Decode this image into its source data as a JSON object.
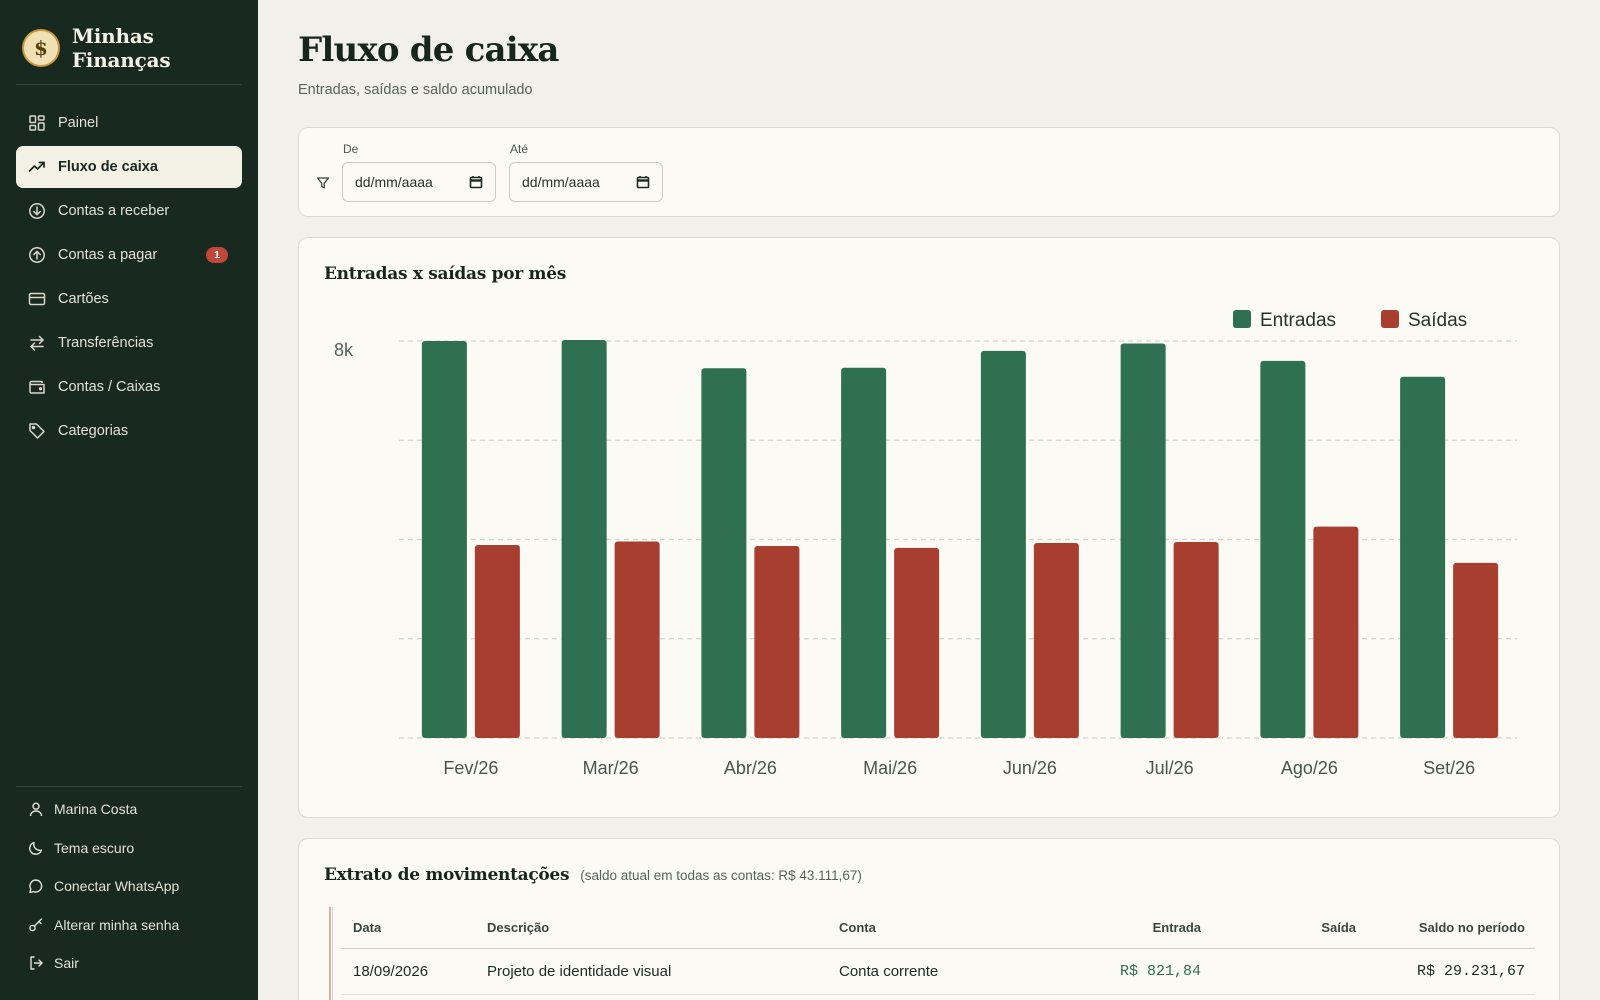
{
  "app": {
    "name": "Minhas Finanças",
    "logo_symbol": "$"
  },
  "sidebar": {
    "items": [
      {
        "label": "Painel",
        "icon": "grid-icon",
        "active": false
      },
      {
        "label": "Fluxo de caixa",
        "icon": "trending-up-icon",
        "active": true
      },
      {
        "label": "Contas a receber",
        "icon": "arrow-down-circle-icon",
        "active": false
      },
      {
        "label": "Contas a pagar",
        "icon": "arrow-up-circle-icon",
        "active": false,
        "badge": "1"
      },
      {
        "label": "Cartões",
        "icon": "credit-card-icon",
        "active": false
      },
      {
        "label": "Transferências",
        "icon": "transfer-arrows-icon",
        "active": false
      },
      {
        "label": "Contas / Caixas",
        "icon": "wallet-icon",
        "active": false
      },
      {
        "label": "Categorias",
        "icon": "tag-icon",
        "active": false
      }
    ],
    "footer": [
      {
        "label": "Marina Costa",
        "icon": "user-icon"
      },
      {
        "label": "Tema escuro",
        "icon": "moon-icon"
      },
      {
        "label": "Conectar WhatsApp",
        "icon": "chat-bubble-icon"
      },
      {
        "label": "Alterar minha senha",
        "icon": "key-icon"
      },
      {
        "label": "Sair",
        "icon": "logout-icon"
      }
    ]
  },
  "page": {
    "title": "Fluxo de caixa",
    "subtitle": "Entradas, saídas e saldo acumulado"
  },
  "filters": {
    "from_label": "De",
    "from_placeholder": "dd/mm/aaaa",
    "to_label": "Até",
    "to_placeholder": "dd/mm/aaaa"
  },
  "chart_card": {
    "title": "Entradas x saídas por mês"
  },
  "chart_data": {
    "type": "bar",
    "categories": [
      "Fev/26",
      "Mar/26",
      "Abr/26",
      "Mai/26",
      "Jun/26",
      "Jul/26",
      "Ago/26",
      "Set/26"
    ],
    "series": [
      {
        "name": "Entradas",
        "color": "#2f7050",
        "values": [
          8000,
          8020,
          7450,
          7460,
          7800,
          7950,
          7600,
          7280
        ]
      },
      {
        "name": "Saídas",
        "color": "#a83e30",
        "values": [
          3890,
          3960,
          3870,
          3830,
          3930,
          3950,
          4260,
          3530
        ]
      }
    ],
    "ylim": [
      0,
      8000
    ],
    "yticks_shown": [
      "8k"
    ],
    "grid": true,
    "legend_position": "top-right"
  },
  "extrato": {
    "title": "Extrato de movimentações",
    "note": "(saldo atual em todas as contas: R$ 43.111,67)",
    "columns": {
      "data": "Data",
      "descricao": "Descrição",
      "conta": "Conta",
      "entrada": "Entrada",
      "saida": "Saída",
      "saldo": "Saldo no período"
    },
    "rows": [
      {
        "data": "18/09/2026",
        "descricao": "Projeto de identidade visual",
        "conta": "Conta corrente",
        "entrada": "R$ 821,84",
        "saida": "",
        "saldo": "R$ 29.231,67"
      }
    ]
  }
}
